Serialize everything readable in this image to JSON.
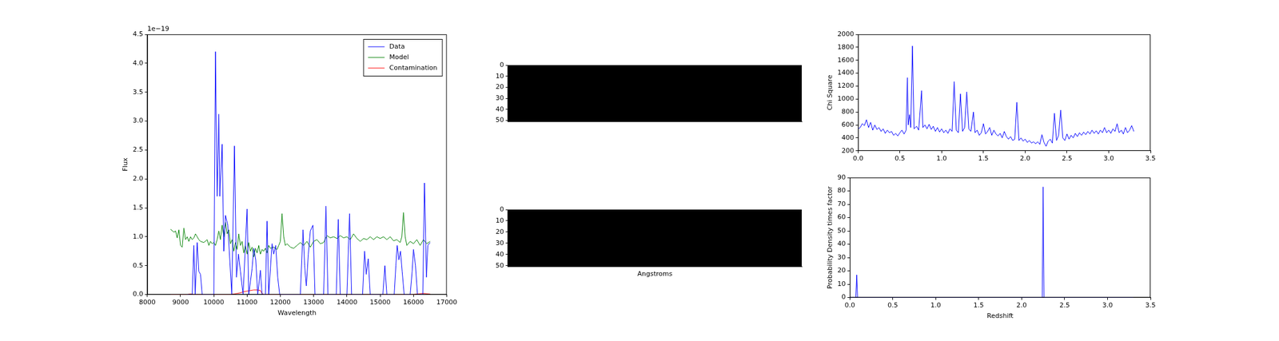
{
  "chart_data": [
    {
      "type": "line",
      "xlabel": "Wavelength",
      "ylabel": "Flux",
      "annotations": [
        {
          "text": "1e−19"
        }
      ],
      "xlim": [
        8000,
        17000
      ],
      "xticks": [
        8000,
        9000,
        10000,
        11000,
        12000,
        13000,
        14000,
        15000,
        16000,
        17000
      ],
      "ylim": [
        0,
        4.5
      ],
      "yticks": [
        {
          "value": 0,
          "label": "0.0"
        },
        0.5,
        {
          "value": 1,
          "label": "1.0"
        },
        1.5,
        {
          "value": 2,
          "label": "2.0"
        },
        2.5,
        {
          "value": 3,
          "label": "3.0"
        },
        3.5,
        {
          "value": 4,
          "label": "4.0"
        },
        4.5
      ],
      "grid": false,
      "legend": "upper right",
      "series": [
        {
          "name": "Data",
          "color": "#0000ff",
          "x": [
            9200,
            9350,
            9400,
            9440,
            9500,
            9550,
            9600,
            9650,
            10000,
            10050,
            10100,
            10150,
            10180,
            10250,
            10300,
            10350,
            10420,
            10480,
            10540,
            10620,
            10680,
            10740,
            10800,
            10880,
            11000,
            11050,
            11150,
            11200,
            11260,
            11320,
            11400,
            11450,
            11550,
            11600,
            11650,
            11750,
            11800,
            11860,
            11920,
            11980,
            12600,
            12680,
            12730,
            12780,
            12840,
            12900,
            12980,
            13040,
            13300,
            13370,
            13430,
            13680,
            13740,
            13800,
            14000,
            14080,
            14140,
            14470,
            14530,
            14580,
            14640,
            14700,
            15080,
            15140,
            15200,
            15420,
            15470,
            15510,
            15560,
            15610,
            15660,
            15720,
            15900,
            15960,
            16000,
            16060,
            16120,
            16280,
            16330,
            16390,
            16430,
            16500
          ],
          "values": [
            0,
            0,
            0.85,
            0,
            0.9,
            0.4,
            0.35,
            0,
            0,
            4.2,
            1.7,
            3.12,
            1.7,
            2.6,
            0.75,
            1.37,
            1.2,
            0.6,
            0,
            2.57,
            0.3,
            0.7,
            0.4,
            0,
            1.48,
            0,
            0.45,
            0.8,
            0.6,
            0,
            0.42,
            0,
            0,
            1.27,
            0,
            0.88,
            0.7,
            0.85,
            0.3,
            0,
            0,
            1.12,
            0.5,
            0.15,
            0.7,
            1.1,
            1.2,
            0,
            0,
            1.53,
            0,
            0,
            1.3,
            0,
            0,
            1.4,
            0,
            0,
            0.75,
            0.35,
            0.62,
            0,
            0,
            0.5,
            0,
            0,
            0.5,
            0.85,
            0.6,
            0.75,
            0.4,
            0,
            0,
            0.4,
            0.78,
            0.5,
            0,
            0,
            1.93,
            0.3,
            0.85,
            0.9
          ]
        },
        {
          "name": "Model",
          "color": "#008000",
          "x": [
            8700,
            8800,
            8850,
            8900,
            8950,
            9000,
            9050,
            9100,
            9150,
            9200,
            9250,
            9300,
            9350,
            9400,
            9450,
            9500,
            9550,
            9600,
            9700,
            9800,
            9850,
            9900,
            9950,
            10000,
            10050,
            10100,
            10150,
            10200,
            10250,
            10300,
            10350,
            10400,
            10450,
            10500,
            10550,
            10600,
            10650,
            10700,
            10750,
            10800,
            10850,
            10900,
            10950,
            11000,
            11050,
            11100,
            11150,
            11200,
            11250,
            11300,
            11350,
            11400,
            11450,
            11500,
            11550,
            11600,
            11650,
            11700,
            11800,
            11900,
            11950,
            12000,
            12050,
            12100,
            12150,
            12200,
            12300,
            12400,
            12500,
            12600,
            12700,
            12800,
            12900,
            13000,
            13100,
            13200,
            13300,
            13400,
            13500,
            13600,
            13700,
            13800,
            13900,
            14000,
            14100,
            14200,
            14300,
            14400,
            14500,
            14600,
            14700,
            14800,
            14900,
            15000,
            15100,
            15200,
            15300,
            15400,
            15500,
            15600,
            15650,
            15700,
            15750,
            15800,
            15900,
            16000,
            16100,
            16200,
            16300,
            16400,
            16500
          ],
          "values": [
            1.13,
            1.08,
            1.1,
            0.98,
            1.12,
            0.85,
            0.82,
            1.15,
            0.95,
            1.0,
            0.92,
            1.0,
            0.95,
            0.98,
            1.05,
            1.0,
            0.95,
            0.92,
            0.9,
            0.95,
            0.85,
            0.92,
            0.88,
            0.9,
            0.85,
            0.95,
            1.1,
            0.95,
            1.2,
            1.0,
            1.25,
            1.05,
            1.12,
            0.88,
            0.95,
            0.75,
            0.9,
            0.78,
            1.05,
            0.85,
            0.92,
            0.72,
            0.85,
            0.7,
            0.9,
            0.75,
            0.82,
            0.65,
            0.8,
            0.72,
            0.85,
            0.7,
            0.78,
            0.75,
            0.8,
            0.72,
            0.85,
            0.8,
            0.82,
            0.78,
            0.85,
            0.92,
            1.4,
            1.0,
            0.85,
            0.88,
            0.82,
            0.8,
            0.85,
            0.9,
            0.85,
            0.92,
            0.82,
            0.92,
            0.95,
            0.88,
            0.9,
            1.02,
            0.98,
            1.0,
            0.97,
            1.02,
            0.98,
            1.0,
            0.95,
            1.05,
            0.97,
            0.92,
            0.97,
            0.95,
            1.0,
            0.95,
            1.0,
            0.97,
            1.0,
            0.95,
            1.0,
            0.93,
            0.95,
            0.9,
            1.0,
            1.42,
            1.0,
            0.85,
            0.92,
            0.88,
            0.95,
            0.85,
            0.95,
            0.88,
            0.92
          ]
        },
        {
          "name": "Contamination",
          "color": "#ff0000",
          "x": [
            8700,
            9200,
            9300,
            9400,
            10500,
            10600,
            10700,
            10800,
            10900,
            11000,
            11100,
            11200,
            11300,
            11400,
            11450,
            11500,
            16000,
            16100,
            16300,
            16500
          ],
          "values": [
            0,
            0,
            0.01,
            0,
            0,
            0.01,
            0.02,
            0.03,
            0.05,
            0.06,
            0.07,
            0.08,
            0.08,
            0.07,
            0.02,
            0,
            0,
            0.01,
            0.02,
            0.01
          ]
        }
      ]
    },
    {
      "type": "image",
      "color": "#000000",
      "ylim": [
        0,
        51
      ],
      "yticks": [
        0,
        10,
        20,
        30,
        40,
        50
      ],
      "tick_labels": "y",
      "grid": false
    },
    {
      "type": "image",
      "color": "#000000",
      "xlabel": "Angstroms",
      "ylim": [
        0,
        51
      ],
      "yticks": [
        0,
        10,
        20,
        30,
        40,
        50
      ],
      "tick_labels": "y",
      "grid": false
    },
    {
      "type": "line",
      "ylabel": "Chi Square",
      "color": "#0000ff",
      "grid": false,
      "xlim": [
        0,
        3.5
      ],
      "xticks": [
        {
          "value": 0,
          "label": "0.0"
        },
        0.5,
        {
          "value": 1,
          "label": "1.0"
        },
        1.5,
        {
          "value": 2,
          "label": "2.0"
        },
        2.5,
        {
          "value": 3,
          "label": "3.0"
        },
        3.5
      ],
      "ylim": [
        200,
        2000
      ],
      "yticks": [
        200,
        400,
        600,
        800,
        1000,
        1200,
        1400,
        1600,
        1800,
        2000
      ],
      "x": [
        0,
        0.025,
        0.05,
        0.075,
        0.1,
        0.125,
        0.15,
        0.175,
        0.2,
        0.225,
        0.25,
        0.275,
        0.3,
        0.325,
        0.35,
        0.375,
        0.4,
        0.425,
        0.45,
        0.475,
        0.5,
        0.525,
        0.55,
        0.575,
        0.59,
        0.6,
        0.615,
        0.63,
        0.65,
        0.67,
        0.7,
        0.725,
        0.76,
        0.775,
        0.8,
        0.825,
        0.85,
        0.875,
        0.9,
        0.925,
        0.95,
        0.975,
        1.0,
        1.025,
        1.05,
        1.075,
        1.1,
        1.125,
        1.15,
        1.175,
        1.2,
        1.225,
        1.25,
        1.275,
        1.3,
        1.325,
        1.35,
        1.38,
        1.4,
        1.425,
        1.45,
        1.475,
        1.5,
        1.525,
        1.55,
        1.575,
        1.6,
        1.625,
        1.65,
        1.675,
        1.7,
        1.725,
        1.75,
        1.775,
        1.8,
        1.825,
        1.85,
        1.875,
        1.9,
        1.925,
        1.95,
        1.975,
        2.0,
        2.025,
        2.05,
        2.075,
        2.1,
        2.125,
        2.15,
        2.175,
        2.2,
        2.225,
        2.25,
        2.275,
        2.3,
        2.325,
        2.35,
        2.375,
        2.4,
        2.425,
        2.45,
        2.475,
        2.5,
        2.525,
        2.55,
        2.575,
        2.6,
        2.625,
        2.65,
        2.675,
        2.7,
        2.725,
        2.75,
        2.775,
        2.8,
        2.825,
        2.85,
        2.875,
        2.9,
        2.925,
        2.95,
        2.975,
        3.0,
        3.025,
        3.05,
        3.075,
        3.1,
        3.125,
        3.15,
        3.175,
        3.2,
        3.225,
        3.25,
        3.275,
        3.3
      ],
      "values": [
        540,
        560,
        620,
        590,
        680,
        560,
        640,
        520,
        600,
        530,
        560,
        500,
        540,
        470,
        520,
        480,
        500,
        440,
        470,
        430,
        480,
        520,
        460,
        520,
        1330,
        600,
        760,
        560,
        1820,
        540,
        580,
        520,
        1130,
        560,
        600,
        540,
        610,
        530,
        580,
        500,
        560,
        490,
        540,
        480,
        520,
        470,
        540,
        500,
        1270,
        520,
        480,
        1080,
        500,
        560,
        1110,
        540,
        500,
        800,
        480,
        520,
        440,
        480,
        620,
        460,
        500,
        560,
        440,
        520,
        460,
        430,
        470,
        400,
        500,
        420,
        380,
        420,
        360,
        380,
        950,
        360,
        400,
        350,
        380,
        330,
        360,
        320,
        340,
        310,
        340,
        300,
        450,
        330,
        270,
        350,
        380,
        320,
        780,
        360,
        440,
        830,
        400,
        360,
        460,
        380,
        440,
        400,
        470,
        420,
        480,
        440,
        490,
        450,
        500,
        460,
        520,
        470,
        510,
        460,
        520,
        480,
        560,
        480,
        520,
        470,
        540,
        500,
        620,
        480,
        520,
        460,
        560,
        480,
        520,
        590,
        500
      ]
    },
    {
      "type": "line",
      "xlabel": "Redshift",
      "ylabel": "Probability Density times factor",
      "color": "#0000ff",
      "grid": false,
      "xlim": [
        0,
        3.5
      ],
      "xticks": [
        {
          "value": 0,
          "label": "0.0"
        },
        0.5,
        {
          "value": 1,
          "label": "1.0"
        },
        1.5,
        {
          "value": 2,
          "label": "2.0"
        },
        2.5,
        {
          "value": 3,
          "label": "3.0"
        },
        3.5
      ],
      "ylim": [
        0,
        90
      ],
      "yticks": [
        0,
        10,
        20,
        30,
        40,
        50,
        60,
        70,
        80,
        90
      ],
      "x": [
        0,
        0.06,
        0.07,
        0.08,
        0.09,
        2.22,
        2.24,
        2.25,
        2.26,
        3.3
      ],
      "values": [
        0,
        0,
        0,
        17,
        0,
        0,
        0,
        83,
        0,
        0
      ]
    }
  ]
}
